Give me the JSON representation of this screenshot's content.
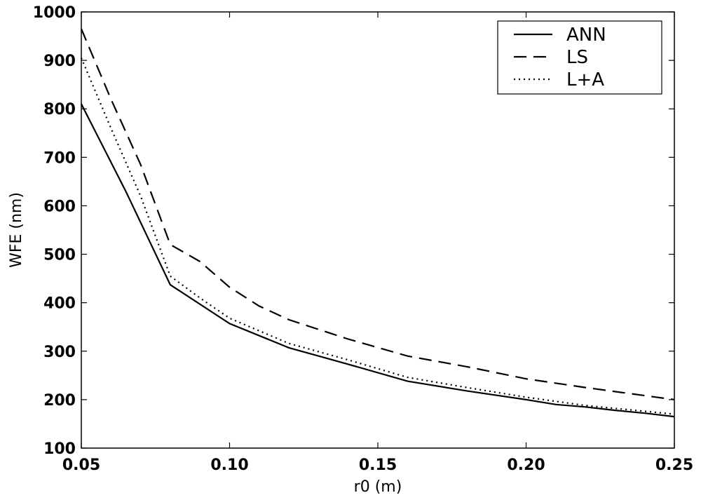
{
  "chart_data": {
    "type": "line",
    "xlabel": "r0 (m)",
    "ylabel": "WFE (nm)",
    "xlim": [
      0.05,
      0.25
    ],
    "ylim": [
      100,
      1000
    ],
    "xticks": [
      "0.05",
      "0.10",
      "0.15",
      "0.20",
      "0.25"
    ],
    "yticks": [
      "100",
      "200",
      "300",
      "400",
      "500",
      "600",
      "700",
      "800",
      "900",
      "1000"
    ],
    "grid": false,
    "legend_position": "top-right",
    "series": [
      {
        "name": "ANN",
        "style": "solid",
        "x": [
          0.05,
          0.065,
          0.08,
          0.1,
          0.12,
          0.14,
          0.16,
          0.18,
          0.2,
          0.21,
          0.22,
          0.23,
          0.24,
          0.25
        ],
        "y": [
          810,
          630,
          437,
          357,
          307,
          273,
          238,
          218,
          200,
          190,
          185,
          178,
          172,
          165
        ]
      },
      {
        "name": "LS",
        "style": "dashed",
        "x": [
          0.05,
          0.06,
          0.07,
          0.08,
          0.09,
          0.1,
          0.11,
          0.12,
          0.14,
          0.16,
          0.18,
          0.2,
          0.22,
          0.25
        ],
        "y": [
          965,
          820,
          685,
          520,
          485,
          432,
          393,
          365,
          325,
          290,
          268,
          243,
          225,
          200
        ]
      },
      {
        "name": "L+A",
        "style": "dotted",
        "x": [
          0.05,
          0.06,
          0.07,
          0.08,
          0.09,
          0.1,
          0.12,
          0.14,
          0.16,
          0.18,
          0.2,
          0.22,
          0.25
        ],
        "y": [
          905,
          760,
          620,
          455,
          410,
          368,
          316,
          282,
          246,
          225,
          205,
          188,
          170
        ]
      }
    ]
  }
}
